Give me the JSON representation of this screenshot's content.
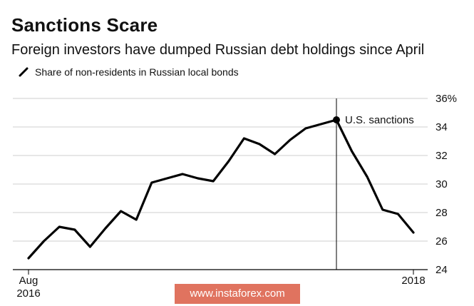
{
  "chart_data": {
    "type": "line",
    "title": "Sanctions Scare",
    "subtitle": "Foreign investors have dumped Russian debt holdings since April",
    "legend": {
      "position": "top-left",
      "entries": [
        "Share of non-residents in Russian local bonds"
      ]
    },
    "series": [
      {
        "name": "Share of non-residents in Russian local bonds",
        "color": "#000000",
        "values": [
          24.8,
          26.0,
          27.0,
          26.8,
          25.6,
          26.9,
          28.1,
          27.5,
          30.1,
          30.4,
          30.7,
          30.4,
          30.2,
          31.6,
          33.2,
          32.8,
          32.1,
          33.1,
          33.9,
          34.2,
          34.5,
          32.3,
          30.5,
          28.2,
          27.9,
          26.6
        ]
      }
    ],
    "x": [
      "2016-08",
      "2016-09",
      "2016-10",
      "2016-11",
      "2016-12",
      "2017-01",
      "2017-02",
      "2017-03",
      "2017-04",
      "2017-05",
      "2017-06",
      "2017-07",
      "2017-08",
      "2017-09",
      "2017-10",
      "2017-11",
      "2017-12",
      "2018-01",
      "2018-02",
      "2018-03",
      "2018-04",
      "2018-05",
      "2018-06",
      "2018-07",
      "2018-08",
      "2018-09"
    ],
    "xlim": [
      "2016-08",
      "2018-09"
    ],
    "ylim": [
      24,
      36
    ],
    "y_ticks": [
      "24",
      "26",
      "28",
      "30",
      "32",
      "34",
      "36%"
    ],
    "x_ticks": [
      {
        "label": "Aug",
        "sublabel": "2016",
        "at": "2016-08"
      },
      {
        "label": "2018",
        "sublabel": "",
        "at": "2018-09"
      }
    ],
    "y_axis_side": "right",
    "grid": true,
    "annotations": [
      {
        "text": "U.S. sanctions",
        "x": "2018-04",
        "y": 34.5
      }
    ]
  },
  "watermark": "www.instaforex.com"
}
